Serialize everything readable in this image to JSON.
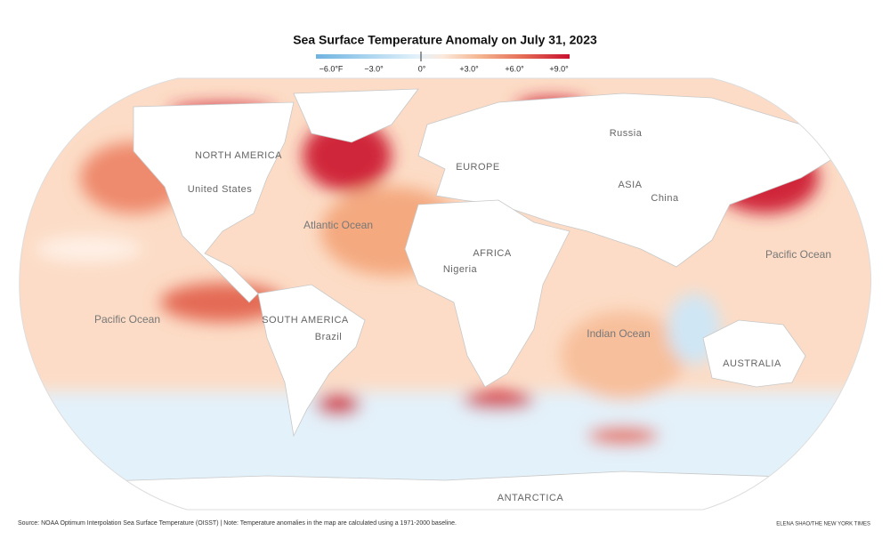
{
  "header": {
    "title": "Sea Surface Temperature Anomaly on July 31, 2023"
  },
  "legend": {
    "ticks": [
      "−6.0°F",
      "−3.0°",
      "0°",
      "+3.0°",
      "+6.0°",
      "+9.0°"
    ]
  },
  "map": {
    "labels": [
      "NORTH AMERICA",
      "United States",
      "EUROPE",
      "Russia",
      "ASIA",
      "China",
      "Atlantic Ocean",
      "AFRICA",
      "Nigeria",
      "Pacific Ocean",
      "Pacific Ocean",
      "SOUTH AMERICA",
      "Brazil",
      "Indian Ocean",
      "AUSTRALIA",
      "ANTARCTICA"
    ]
  },
  "footer": {
    "source": "Source: NOAA Optimum Interpolation Sea Surface Temperature (OISST) | Note: Temperature anomalies in the map are calculated using a 1971-2000 baseline.",
    "credit": "ELENA SHAO/THE NEW YORK TIMES"
  }
}
